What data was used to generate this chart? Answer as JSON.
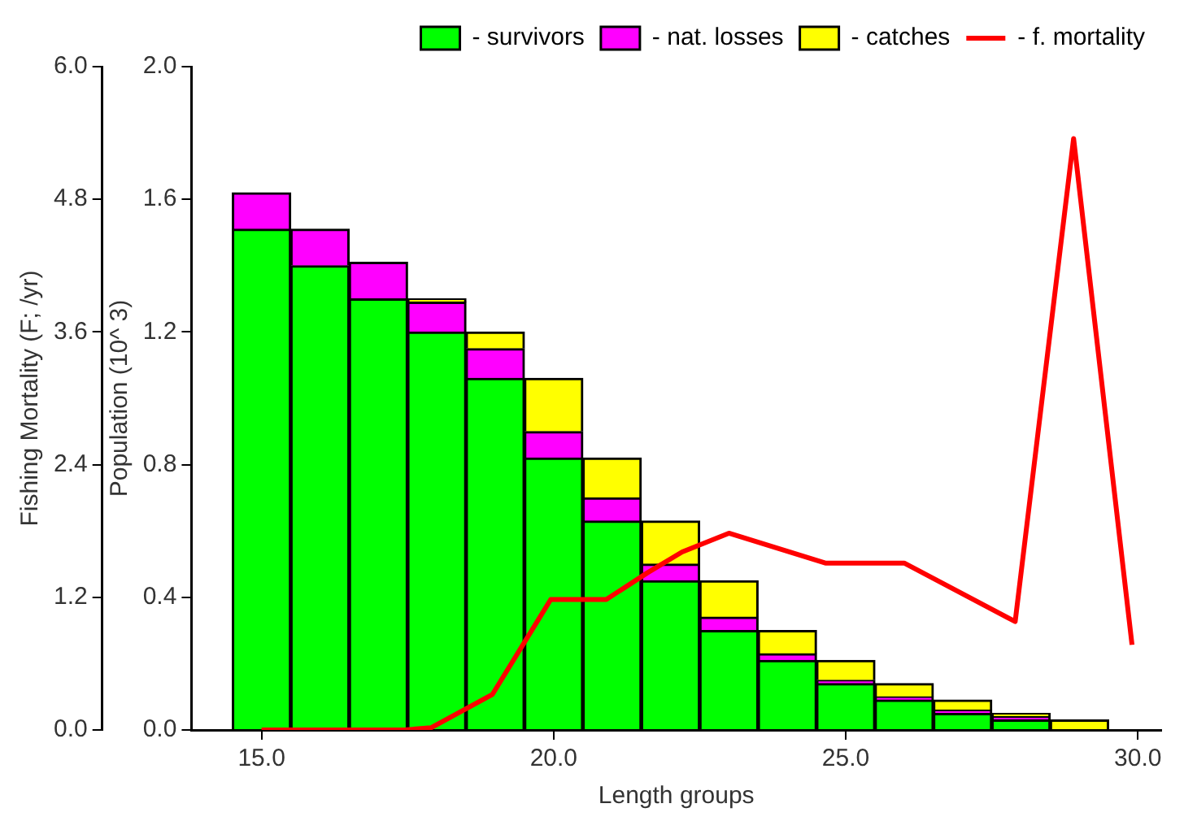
{
  "chart_data": {
    "type": "bar",
    "stacked": true,
    "xlabel": "Length groups",
    "ylabel": "Population (10^ 3)",
    "y2label": "Fishing Mortality (F; /yr)",
    "x": [
      15,
      16,
      17,
      18,
      19,
      20,
      21,
      22,
      23,
      24,
      25,
      26,
      27,
      28,
      29
    ],
    "series": [
      {
        "name": "- survivors",
        "color": "#00ff00",
        "values": [
          1.51,
          1.4,
          1.3,
          1.2,
          1.06,
          0.82,
          0.63,
          0.45,
          0.3,
          0.21,
          0.14,
          0.09,
          0.05,
          0.03,
          0
        ]
      },
      {
        "name": "- nat. losses",
        "color": "#ff00ff",
        "values": [
          0.11,
          0.11,
          0.11,
          0.09,
          0.09,
          0.08,
          0.07,
          0.05,
          0.04,
          0.02,
          0.01,
          0.01,
          0.01,
          0.01,
          0
        ]
      },
      {
        "name": "- catches",
        "color": "#ffff00",
        "values": [
          0,
          0,
          0,
          0.01,
          0.05,
          0.16,
          0.12,
          0.13,
          0.11,
          0.07,
          0.06,
          0.04,
          0.03,
          0.01,
          0.03
        ]
      },
      {
        "name": "- f. mortality",
        "type": "line",
        "axis": "y2",
        "color": "#ff0000",
        "marker": "none",
        "x": [
          15,
          17.45,
          17.9,
          18.95,
          19.95,
          20.9,
          21.6,
          22.2,
          23.0,
          24.65,
          26.0,
          27.9,
          28.9,
          29.9
        ],
        "values": [
          0,
          0,
          0.02,
          0.32,
          1.18,
          1.18,
          1.42,
          1.61,
          1.78,
          1.51,
          1.51,
          0.98,
          5.35,
          0.77
        ]
      }
    ],
    "xlim": [
      13.8,
      30.4
    ],
    "xticks": [
      {
        "value": 15,
        "label": "15.0"
      },
      {
        "value": 20,
        "label": "20.0"
      },
      {
        "value": 25,
        "label": "25.0"
      },
      {
        "value": 30,
        "label": "30.0"
      }
    ],
    "ylim": [
      0,
      2
    ],
    "yticks": [
      {
        "value": 0,
        "label": "0.0"
      },
      {
        "value": 0.4,
        "label": "0.4"
      },
      {
        "value": 0.8,
        "label": "0.8"
      },
      {
        "value": 1.2,
        "label": "1.2"
      },
      {
        "value": 1.6,
        "label": "1.6"
      },
      {
        "value": 2,
        "label": "2.0"
      }
    ],
    "y2lim": [
      0,
      6
    ],
    "y2ticks": [
      {
        "value": 0,
        "label": "0.0"
      },
      {
        "value": 1.2,
        "label": "1.2"
      },
      {
        "value": 2.4,
        "label": "2.4"
      },
      {
        "value": 3.6,
        "label": "3.6"
      },
      {
        "value": 4.8,
        "label": "4.8"
      },
      {
        "value": 6,
        "label": "6.0"
      }
    ],
    "grid": false,
    "legend": "top right"
  }
}
